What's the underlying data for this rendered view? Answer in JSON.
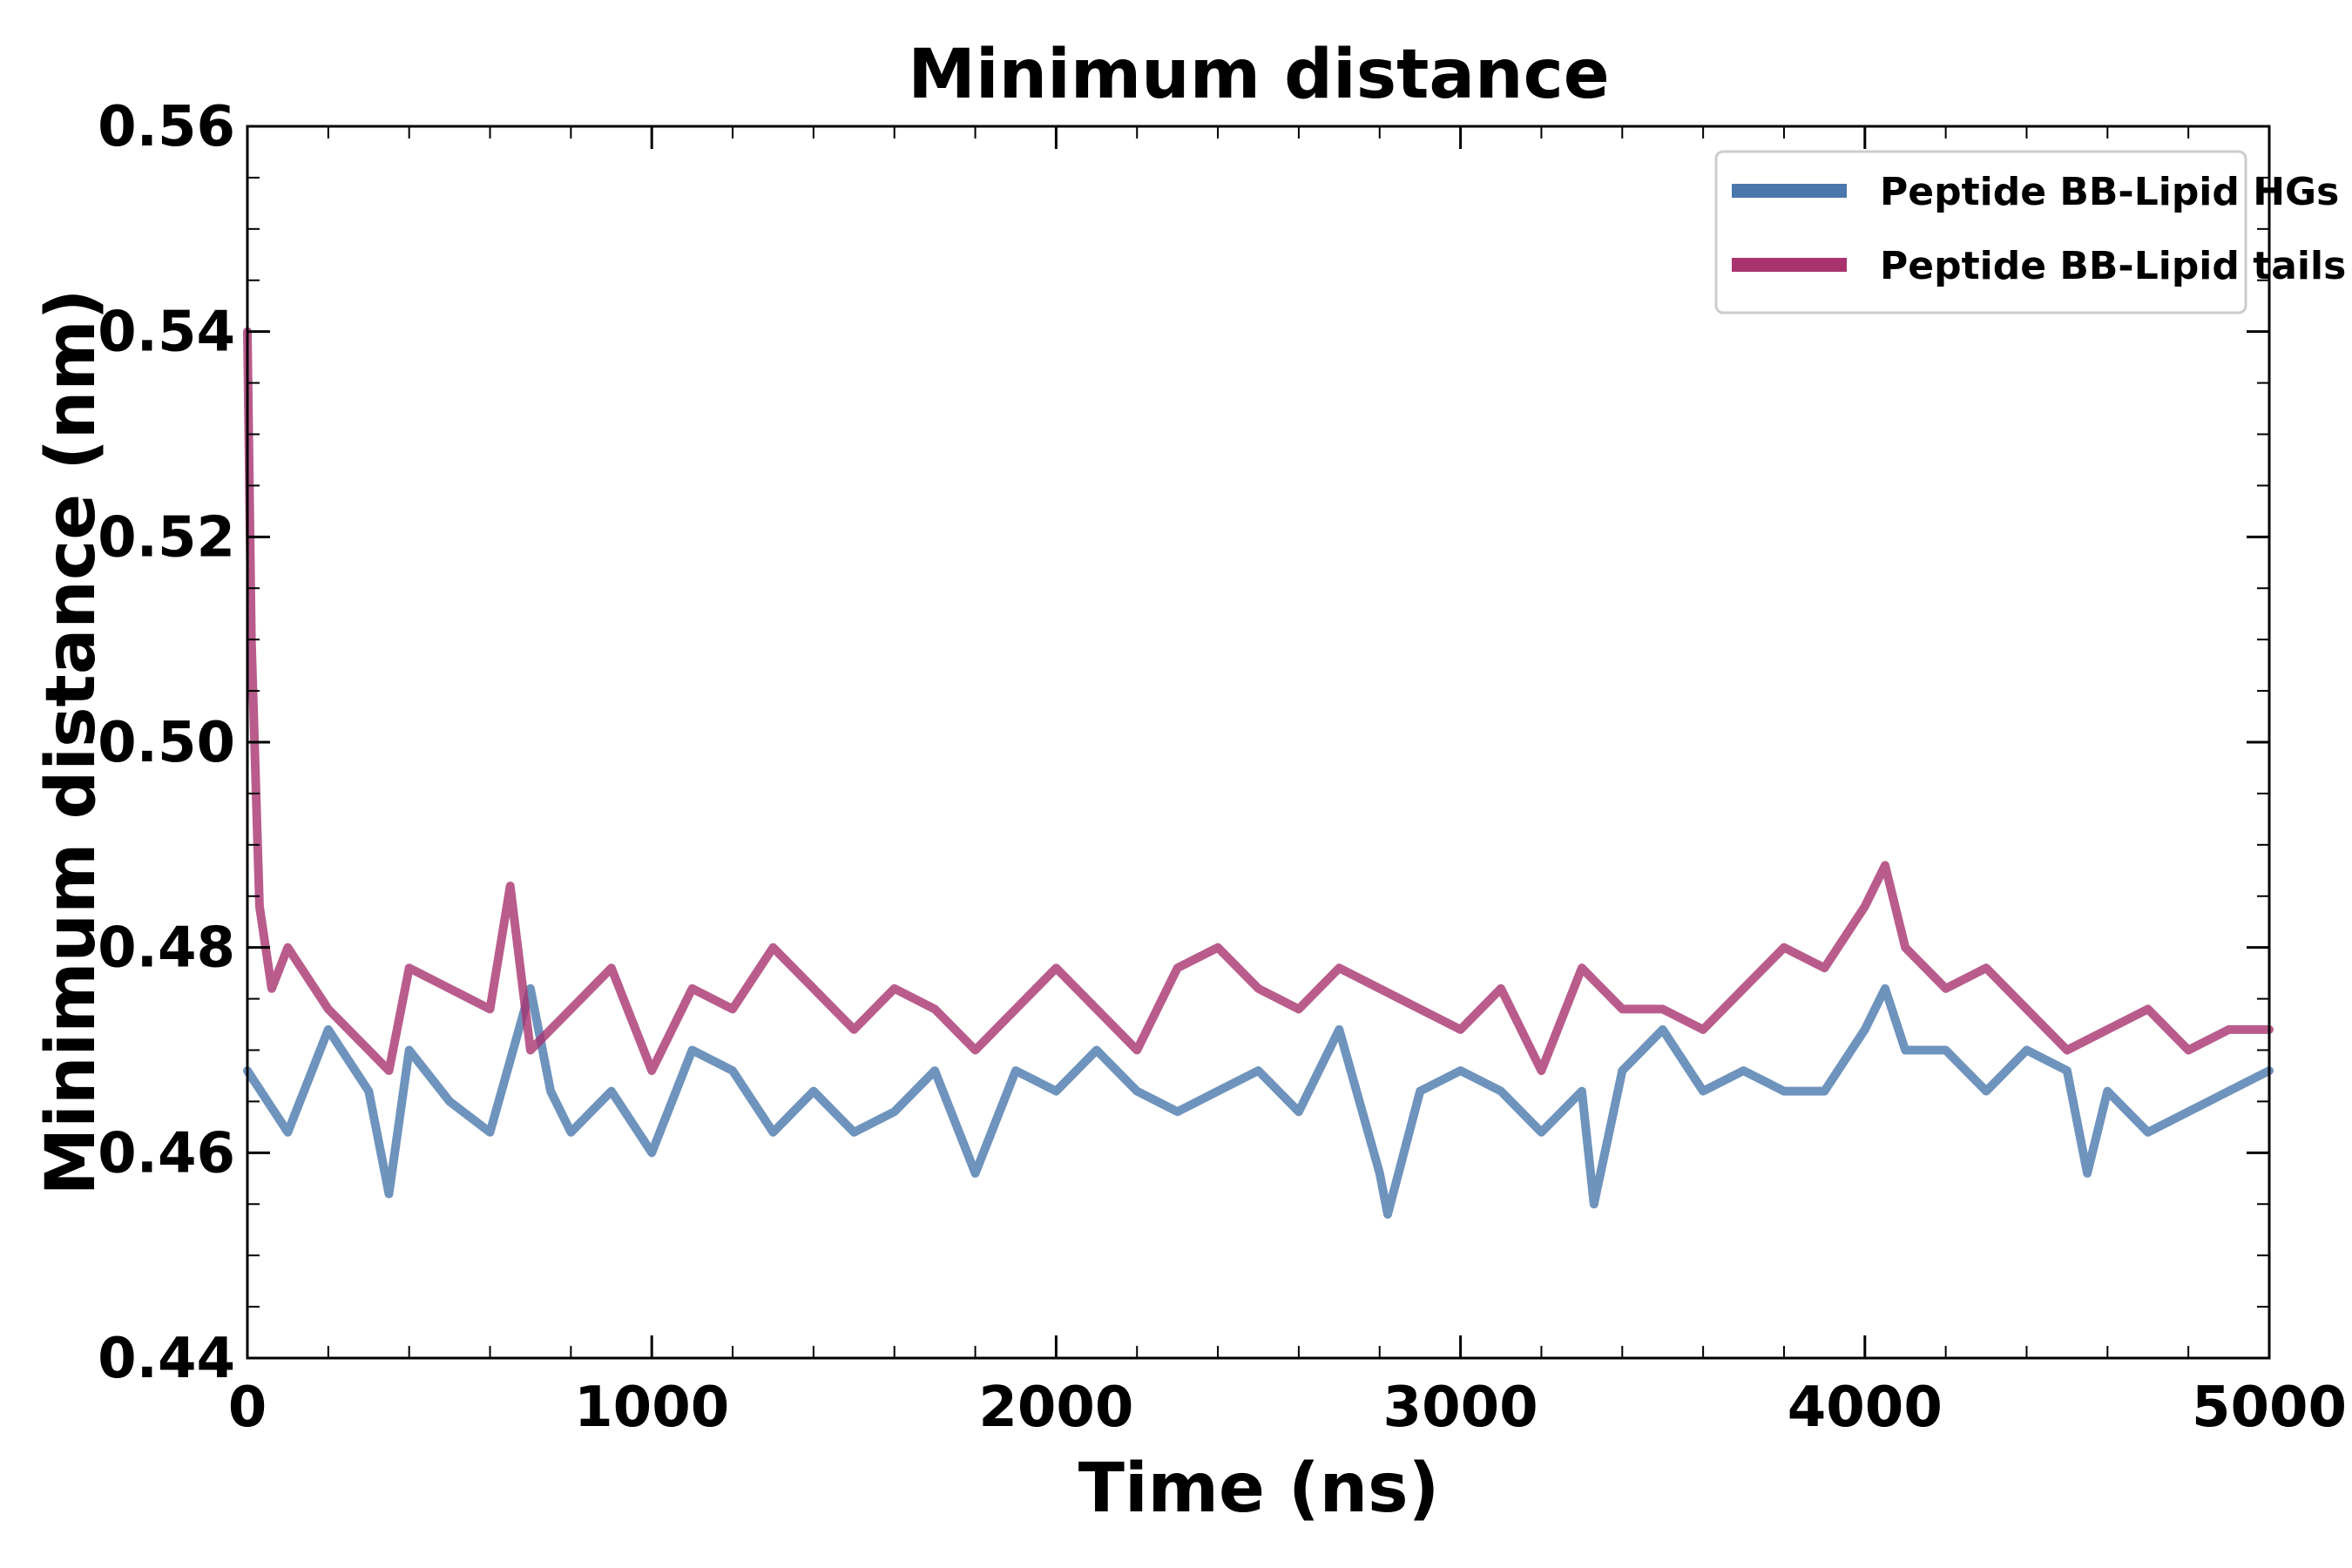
{
  "chart_data": {
    "type": "line",
    "title": "Minimum distance",
    "xlabel": "Time (ns)",
    "ylabel": "Minimum distance (nm)",
    "xlim": [
      0,
      5000
    ],
    "ylim": [
      0.44,
      0.56
    ],
    "x_ticks": [
      0,
      1000,
      2000,
      3000,
      4000,
      5000
    ],
    "x_tick_labels": [
      "0",
      "1000",
      "2000",
      "3000",
      "4000",
      "5000"
    ],
    "y_ticks": [
      0.44,
      0.46,
      0.48,
      0.5,
      0.52,
      0.54,
      0.56
    ],
    "y_tick_labels": [
      "0.44",
      "0.46",
      "0.48",
      "0.50",
      "0.52",
      "0.54",
      "0.56"
    ],
    "grid": false,
    "legend_position": "top-right",
    "series": [
      {
        "name": "Peptide BB-Lipid HGs",
        "color": "#4a78ad",
        "x": [
          0,
          100,
          200,
          300,
          350,
          400,
          500,
          600,
          700,
          750,
          800,
          900,
          1000,
          1100,
          1200,
          1300,
          1400,
          1500,
          1600,
          1700,
          1800,
          1900,
          2000,
          2100,
          2200,
          2300,
          2400,
          2500,
          2600,
          2700,
          2800,
          2820,
          2900,
          3000,
          3100,
          3200,
          3300,
          3330,
          3400,
          3500,
          3600,
          3700,
          3800,
          3900,
          4000,
          4050,
          4100,
          4200,
          4300,
          4400,
          4500,
          4550,
          4600,
          4700,
          4800,
          4900,
          5000
        ],
        "y": [
          0.468,
          0.462,
          0.472,
          0.466,
          0.456,
          0.47,
          0.465,
          0.462,
          0.476,
          0.466,
          0.462,
          0.466,
          0.46,
          0.47,
          0.468,
          0.462,
          0.466,
          0.462,
          0.464,
          0.468,
          0.458,
          0.468,
          0.466,
          0.47,
          0.466,
          0.464,
          0.466,
          0.468,
          0.464,
          0.472,
          0.458,
          0.454,
          0.466,
          0.468,
          0.466,
          0.462,
          0.466,
          0.455,
          0.468,
          0.472,
          0.466,
          0.468,
          0.466,
          0.466,
          0.472,
          0.476,
          0.47,
          0.47,
          0.466,
          0.47,
          0.468,
          0.458,
          0.466,
          0.462,
          0.464,
          0.466,
          0.468
        ]
      },
      {
        "name": "Peptide BB-Lipid tails",
        "color": "#a8336f",
        "x": [
          0,
          10,
          30,
          60,
          100,
          200,
          300,
          350,
          400,
          500,
          600,
          650,
          700,
          800,
          900,
          1000,
          1100,
          1200,
          1300,
          1400,
          1500,
          1600,
          1700,
          1800,
          1900,
          2000,
          2100,
          2200,
          2300,
          2400,
          2500,
          2600,
          2700,
          2800,
          2900,
          3000,
          3100,
          3200,
          3300,
          3400,
          3500,
          3600,
          3700,
          3800,
          3900,
          4000,
          4050,
          4100,
          4200,
          4300,
          4400,
          4500,
          4600,
          4700,
          4800,
          4900,
          5000
        ],
        "y": [
          0.54,
          0.51,
          0.484,
          0.476,
          0.48,
          0.474,
          0.47,
          0.468,
          0.478,
          0.476,
          0.474,
          0.486,
          0.47,
          0.474,
          0.478,
          0.468,
          0.476,
          0.474,
          0.48,
          0.476,
          0.472,
          0.476,
          0.474,
          0.47,
          0.474,
          0.478,
          0.474,
          0.47,
          0.478,
          0.48,
          0.476,
          0.474,
          0.478,
          0.476,
          0.474,
          0.472,
          0.476,
          0.468,
          0.478,
          0.474,
          0.474,
          0.472,
          0.476,
          0.48,
          0.478,
          0.484,
          0.488,
          0.48,
          0.476,
          0.478,
          0.474,
          0.47,
          0.472,
          0.474,
          0.47,
          0.472,
          0.472
        ]
      }
    ]
  }
}
